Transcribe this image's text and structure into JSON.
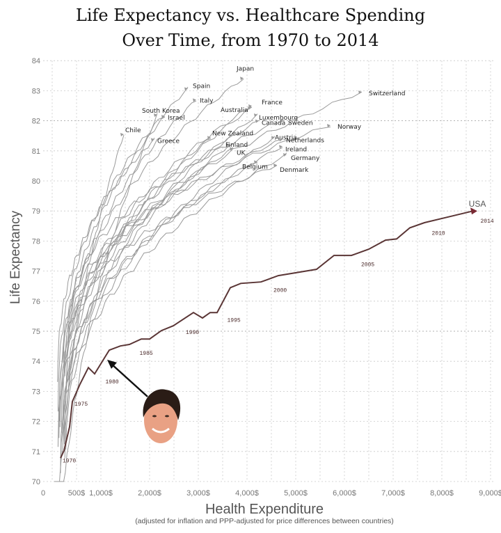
{
  "chart_data": {
    "type": "line",
    "title_line1": "Life Expectancy vs. Healthcare Spending",
    "title_line2": "Over Time, from 1970 to 2014",
    "xlabel": "Health Expenditure",
    "xlabel_note": "(adjusted for inflation and PPP-adjusted for price differences between countries)",
    "ylabel": "Life Expectancy",
    "xlim": [
      0,
      9000
    ],
    "ylim": [
      70,
      84
    ],
    "grid": true,
    "x_ticks": [
      {
        "value": 0,
        "label": "0"
      },
      {
        "value": 500,
        "label": "500$"
      },
      {
        "value": 1000,
        "label": "1,000$"
      },
      {
        "value": 2000,
        "label": "2,000$"
      },
      {
        "value": 3000,
        "label": "3,000$"
      },
      {
        "value": 4000,
        "label": "4,000$"
      },
      {
        "value": 5000,
        "label": "5,000$"
      },
      {
        "value": 6000,
        "label": "6,000$"
      },
      {
        "value": 7000,
        "label": "7,000$"
      },
      {
        "value": 8000,
        "label": "8,000$"
      },
      {
        "value": 9000,
        "label": "9,000$"
      }
    ],
    "y_ticks": [
      "70",
      "71",
      "72",
      "73",
      "74",
      "75",
      "76",
      "77",
      "78",
      "79",
      "80",
      "81",
      "82",
      "83",
      "84"
    ],
    "highlight": {
      "name": "USA",
      "color": "#5a3535",
      "points": [
        [
          171,
          70.78
        ],
        [
          243,
          71.03
        ],
        [
          357,
          71.82
        ],
        [
          414,
          72.66
        ],
        [
          571,
          73.24
        ],
        [
          743,
          73.79
        ],
        [
          871,
          73.58
        ],
        [
          1171,
          74.37
        ],
        [
          1400,
          74.51
        ],
        [
          1586,
          74.56
        ],
        [
          1829,
          74.74
        ],
        [
          2000,
          74.74
        ],
        [
          2243,
          75.02
        ],
        [
          2486,
          75.18
        ],
        [
          2900,
          75.62
        ],
        [
          3086,
          75.44
        ],
        [
          3243,
          75.62
        ],
        [
          3386,
          75.62
        ],
        [
          3657,
          76.45
        ],
        [
          3871,
          76.59
        ],
        [
          4286,
          76.64
        ],
        [
          4643,
          76.85
        ],
        [
          5429,
          77.06
        ],
        [
          5786,
          77.52
        ],
        [
          6143,
          77.52
        ],
        [
          6500,
          77.73
        ],
        [
          6843,
          78.03
        ],
        [
          7071,
          78.07
        ],
        [
          7343,
          78.44
        ],
        [
          7643,
          78.61
        ],
        [
          8643,
          79.0
        ]
      ],
      "year_labels": [
        {
          "year": "1970",
          "at": [
            171,
            70.78
          ]
        },
        {
          "year": "1975",
          "at": [
            414,
            72.66
          ]
        },
        {
          "year": "1980",
          "at": [
            1050,
            73.4
          ]
        },
        {
          "year": "1985",
          "at": [
            1750,
            74.35
          ]
        },
        {
          "year": "1990",
          "at": [
            2700,
            75.05
          ]
        },
        {
          "year": "1995",
          "at": [
            3550,
            75.45
          ]
        },
        {
          "year": "2000",
          "at": [
            4500,
            76.45
          ]
        },
        {
          "year": "2005",
          "at": [
            6300,
            77.3
          ]
        },
        {
          "year": "2010",
          "at": [
            7750,
            78.35
          ]
        },
        {
          "year": "2014",
          "at": [
            8750,
            78.75
          ]
        }
      ]
    },
    "series": [
      {
        "name": "Japan",
        "start": [
          150,
          72.0
        ],
        "end": [
          3929,
          83.42
        ]
      },
      {
        "name": "Spain",
        "start": [
          120,
          72.2
        ],
        "end": [
          2786,
          83.07
        ]
      },
      {
        "name": "Italy",
        "start": [
          190,
          71.8
        ],
        "end": [
          2957,
          82.7
        ]
      },
      {
        "name": "Switzerland",
        "start": [
          300,
          73.3
        ],
        "end": [
          6357,
          82.96
        ]
      },
      {
        "name": "Australia",
        "start": [
          250,
          71.2
        ],
        "end": [
          4086,
          82.43
        ]
      },
      {
        "name": "France",
        "start": [
          220,
          72.2
        ],
        "end": [
          4100,
          82.5
        ]
      },
      {
        "name": "Luxembourg",
        "start": [
          260,
          70.6
        ],
        "end": [
          4214,
          82.2
        ]
      },
      {
        "name": "Canada",
        "start": [
          280,
          72.7
        ],
        "end": [
          4243,
          82.0
        ]
      },
      {
        "name": "Sweden",
        "start": [
          330,
          74.6
        ],
        "end": [
          4757,
          82.03
        ]
      },
      {
        "name": "South Korea",
        "start": [
          40,
          62.0
        ],
        "end": [
          2157,
          82.2
        ]
      },
      {
        "name": "Israel",
        "start": [
          140,
          71.6
        ],
        "end": [
          2314,
          82.15
        ]
      },
      {
        "name": "Chile",
        "start": [
          60,
          64.0
        ],
        "end": [
          1471,
          81.55
        ]
      },
      {
        "name": "Greece",
        "start": [
          110,
          73.2
        ],
        "end": [
          2100,
          81.38
        ]
      },
      {
        "name": "New Zealand",
        "start": [
          260,
          71.6
        ],
        "end": [
          3257,
          81.45
        ]
      },
      {
        "name": "Finland",
        "start": [
          170,
          70.3
        ],
        "end": [
          3643,
          81.2
        ]
      },
      {
        "name": "UK",
        "start": [
          160,
          71.8
        ],
        "end": [
          3714,
          81.08
        ]
      },
      {
        "name": "Norway",
        "start": [
          230,
          74.1
        ],
        "end": [
          5714,
          81.85
        ]
      },
      {
        "name": "Austria",
        "start": [
          170,
          70.1
        ],
        "end": [
          4571,
          81.45
        ]
      },
      {
        "name": "Netherlands",
        "start": [
          260,
          73.6
        ],
        "end": [
          4729,
          81.38
        ]
      },
      {
        "name": "Ireland",
        "start": [
          120,
          71.2
        ],
        "end": [
          4729,
          81.15
        ]
      },
      {
        "name": "Germany",
        "start": [
          280,
          70.9
        ],
        "end": [
          4814,
          80.88
        ]
      },
      {
        "name": "Belgium",
        "start": [
          220,
          71.4
        ],
        "end": [
          4214,
          80.64
        ]
      },
      {
        "name": "Denmark",
        "start": [
          240,
          73.4
        ],
        "end": [
          4614,
          80.53
        ]
      }
    ],
    "colors": {
      "country": "#9a9a9a",
      "usa": "#5a3535",
      "grid": "#c8c8c8"
    }
  }
}
